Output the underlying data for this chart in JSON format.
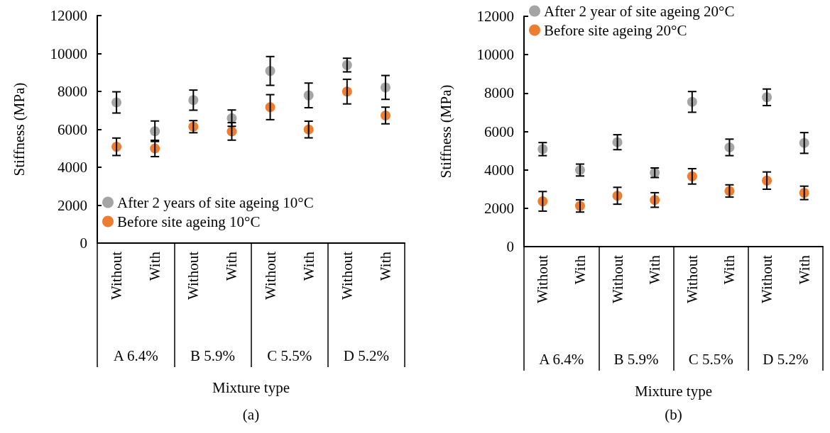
{
  "chart_data": [
    {
      "type": "scatter",
      "ylabel": "Stiffness (MPa)",
      "xlabel": "Mixture type",
      "categories": [
        "Without",
        "With",
        "Without",
        "With",
        "Without",
        "With",
        "Without",
        "With"
      ],
      "ylim": [
        0,
        12000
      ],
      "yticks": [
        0,
        2000,
        4000,
        6000,
        8000,
        10000,
        12000
      ],
      "legend": "bottom left",
      "marker": "circle",
      "grid": false,
      "series": [
        {
          "name": "After 2 years of site ageing 10°C",
          "color": "#a5a5a5",
          "values": [
            7420,
            5900,
            7540,
            6590,
            9080,
            7790,
            9390,
            8210
          ],
          "errors": [
            560,
            540,
            530,
            430,
            760,
            650,
            360,
            630
          ]
        },
        {
          "name": "Before site ageing 10°C",
          "color": "#ed7d31",
          "values": [
            5080,
            4990,
            6140,
            5890,
            7170,
            5990,
            7990,
            6730
          ],
          "errors": [
            460,
            430,
            320,
            460,
            660,
            440,
            650,
            440
          ]
        }
      ],
      "annotations": [
        "A 6.4%",
        "B 5.9%",
        "C 5.5%",
        "D 5.2%",
        "(a)"
      ]
    },
    {
      "type": "scatter",
      "ylabel": "Stiffness (MPa)",
      "xlabel": "Mixture type",
      "categories": [
        "Without",
        "With",
        "Without",
        "With",
        "Without",
        "With",
        "Without",
        "With"
      ],
      "ylim": [
        0,
        12000
      ],
      "yticks": [
        0,
        2000,
        4000,
        6000,
        8000,
        10000,
        12000
      ],
      "legend": "top left",
      "marker": "circle",
      "grid": false,
      "series": [
        {
          "name": "After 2 year of site ageing 20°C",
          "color": "#a5a5a5",
          "values": [
            5080,
            3990,
            5440,
            3850,
            7540,
            5170,
            7780,
            5400
          ],
          "errors": [
            340,
            310,
            390,
            250,
            540,
            430,
            430,
            540
          ]
        },
        {
          "name": "Before site ageing 20°C",
          "color": "#ed7d31",
          "values": [
            2360,
            2120,
            2650,
            2430,
            3660,
            2900,
            3440,
            2800
          ],
          "errors": [
            510,
            320,
            440,
            380,
            400,
            320,
            450,
            350
          ]
        }
      ],
      "annotations": [
        "A 6.4%",
        "B 5.9%",
        "C 5.5%",
        "D 5.2%",
        "(b)"
      ]
    }
  ]
}
